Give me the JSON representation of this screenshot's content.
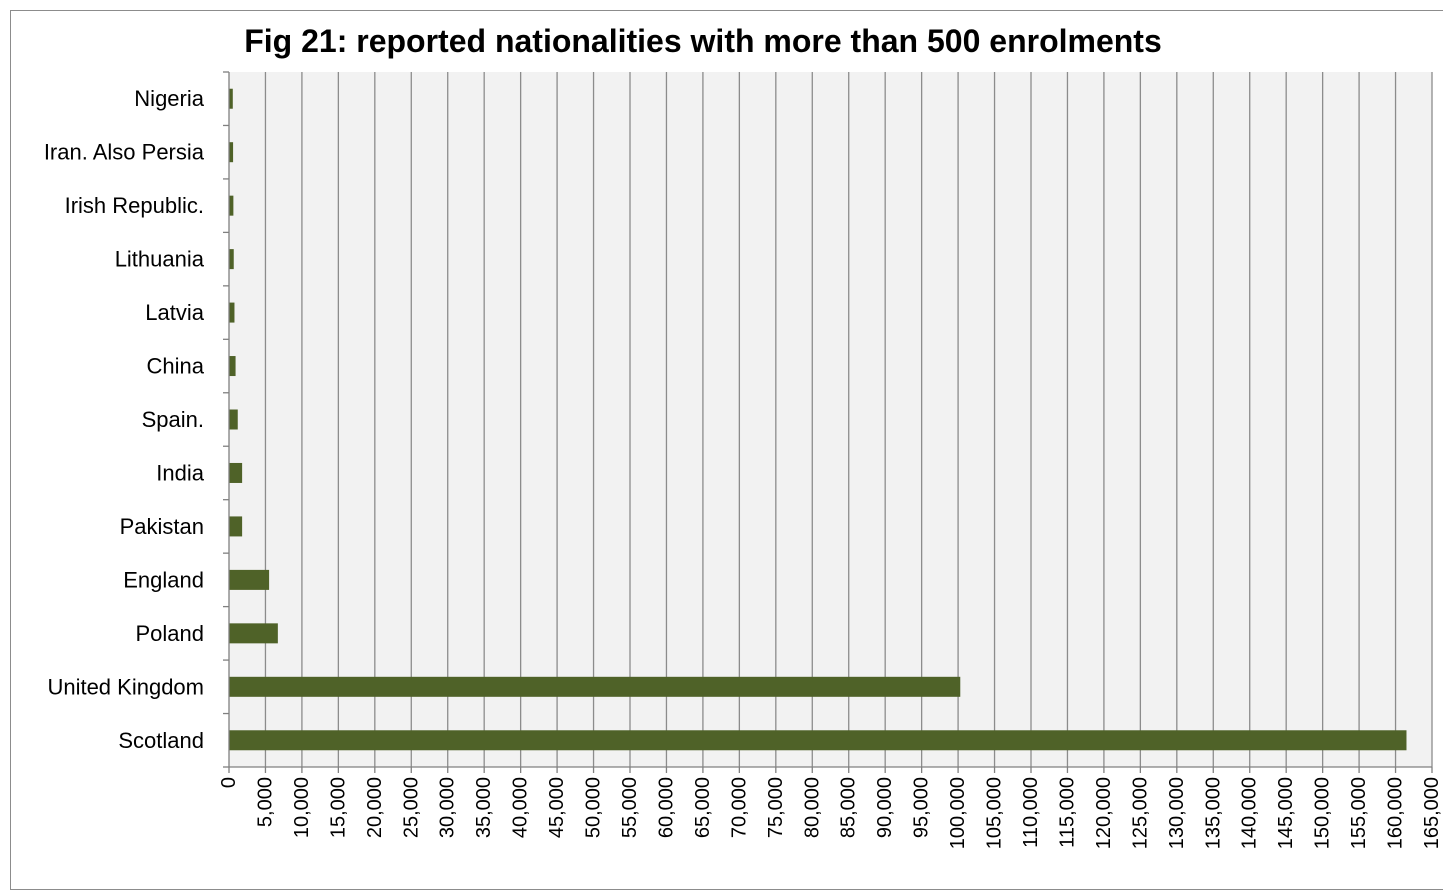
{
  "chart_data": {
    "type": "bar",
    "orientation": "horizontal",
    "title": "Fig 21: reported nationalities with more than 500 enrolments",
    "xlabel": "",
    "ylabel": "",
    "categories": [
      "Nigeria",
      "Iran. Also Persia",
      "Irish Republic.",
      "Lithuania",
      "Latvia",
      "China",
      "Spain.",
      "India",
      "Pakistan",
      "England",
      "Poland",
      "United Kingdom",
      "Scotland"
    ],
    "values": [
      520,
      560,
      600,
      650,
      750,
      900,
      1200,
      1800,
      1800,
      5500,
      6700,
      100300,
      161500
    ],
    "xlim": [
      0,
      165000
    ],
    "xtick_step": 5000,
    "xtick_labels": [
      "0",
      "5,000",
      "10,000",
      "15,000",
      "20,000",
      "25,000",
      "30,000",
      "35,000",
      "40,000",
      "45,000",
      "50,000",
      "55,000",
      "60,000",
      "65,000",
      "70,000",
      "75,000",
      "80,000",
      "85,000",
      "90,000",
      "95,000",
      "100,000",
      "105,000",
      "110,000",
      "115,000",
      "120,000",
      "125,000",
      "130,000",
      "135,000",
      "140,000",
      "145,000",
      "150,000",
      "155,000",
      "160,000",
      "165,000"
    ],
    "grid": "vertical",
    "legend": "none",
    "colors": {
      "bar": "#4f6228",
      "plot_background": "#f2f2f2",
      "gridline": "#8c8c8c",
      "axis": "#808080"
    }
  }
}
